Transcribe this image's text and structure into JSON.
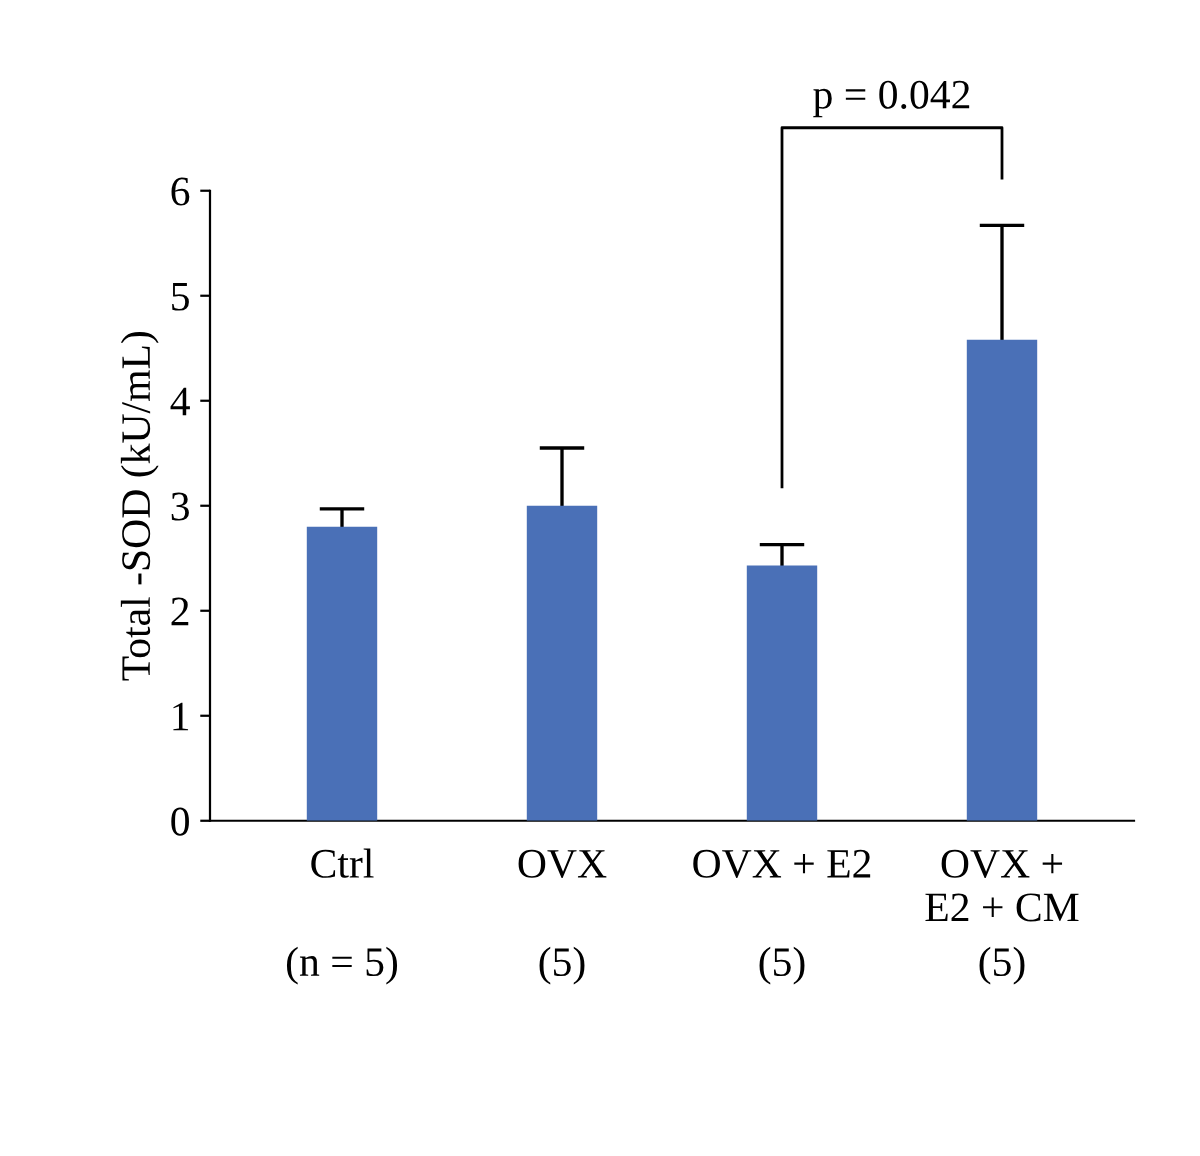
{
  "chart_data": {
    "type": "bar",
    "ylabel": "Total -SOD (kU/mL)",
    "categories": [
      "Ctrl",
      "OVX",
      "OVX + E2",
      "OVX +\nE2 + CM"
    ],
    "values": [
      2.8,
      3.0,
      2.43,
      4.58
    ],
    "errors": [
      0.17,
      0.55,
      0.2,
      1.09
    ],
    "color": "#4a70b7",
    "ylim": [
      0,
      6
    ],
    "yticks": [
      0,
      1,
      2,
      3,
      4,
      5,
      6
    ],
    "grid": false,
    "annotations": [
      "p = 0.042",
      "(n = 5)",
      "(5)",
      "(5)",
      "(5)"
    ]
  }
}
